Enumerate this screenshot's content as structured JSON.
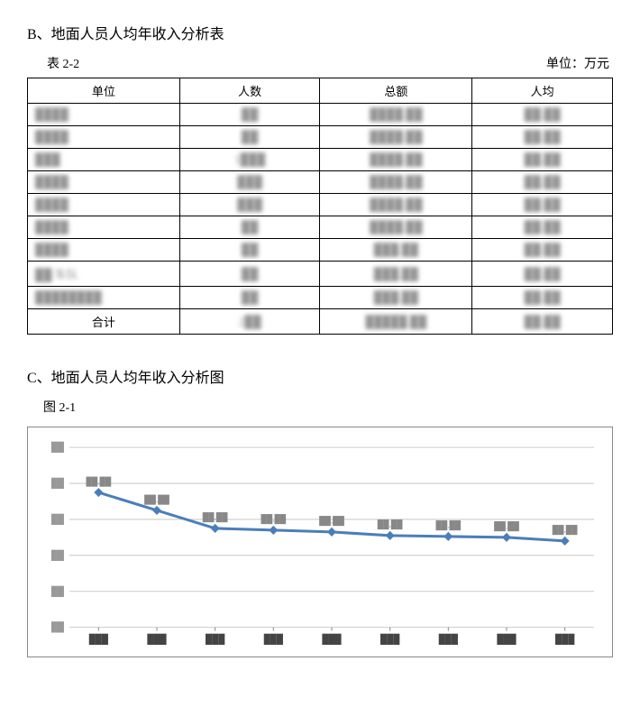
{
  "sectionB": {
    "title": "B、地面人员人均年收入分析表",
    "table_label": "表 2-2",
    "unit_label": "单位：万元",
    "columns": [
      "单位",
      "人数",
      "总额",
      "人均"
    ],
    "rows": [
      {
        "unit": "████",
        "count": "██",
        "total": "████.██",
        "avg": "██.██"
      },
      {
        "unit": "████",
        "count": "██",
        "total": "████.██",
        "avg": "██.██"
      },
      {
        "unit": "███",
        "count": "1███",
        "total": "████.██",
        "avg": "██.██"
      },
      {
        "unit": "████",
        "count": "███",
        "total": "████.██",
        "avg": "██.██"
      },
      {
        "unit": "████",
        "count": "███",
        "total": "████.██",
        "avg": "██.██"
      },
      {
        "unit": "████",
        "count": "██",
        "total": "████.██",
        "avg": "██.██"
      },
      {
        "unit": "████",
        "count": "██",
        "total": "███.██",
        "avg": "██.██"
      },
      {
        "unit": "██ 车队",
        "count": "██",
        "total": "███.██",
        "avg": "██.██"
      },
      {
        "unit": "████████",
        "count": "██",
        "total": "███.██",
        "avg": "██.██"
      }
    ],
    "total_row": {
      "unit": "合计",
      "count": "2██",
      "total": "█████.██",
      "avg": "██.██"
    }
  },
  "sectionC": {
    "title": "C、地面人员人均年收入分析图",
    "fig_label": "图 2-1",
    "chart": {
      "type": "line",
      "background_color": "#ffffff",
      "border_color": "#888888",
      "grid_color": "#cccccc",
      "line_color": "#4a7ebb",
      "marker_color": "#4a7ebb",
      "marker_style": "diamond",
      "marker_size": 5,
      "line_width": 3,
      "ylim": [
        0,
        100
      ],
      "ytick_step": 20,
      "y_ticks": [
        0,
        20,
        40,
        60,
        80,
        100
      ],
      "categories": [
        "███",
        "███",
        "███",
        "███",
        "███",
        "███",
        "███",
        "███",
        "███"
      ],
      "values": [
        75,
        65,
        55,
        54,
        53,
        51,
        50.5,
        50,
        48
      ],
      "point_labels": [
        "██.██",
        "██.██",
        "██.██",
        "██.██",
        "██.██",
        "██.██",
        "██.██",
        "██.██",
        "██.██"
      ]
    }
  }
}
